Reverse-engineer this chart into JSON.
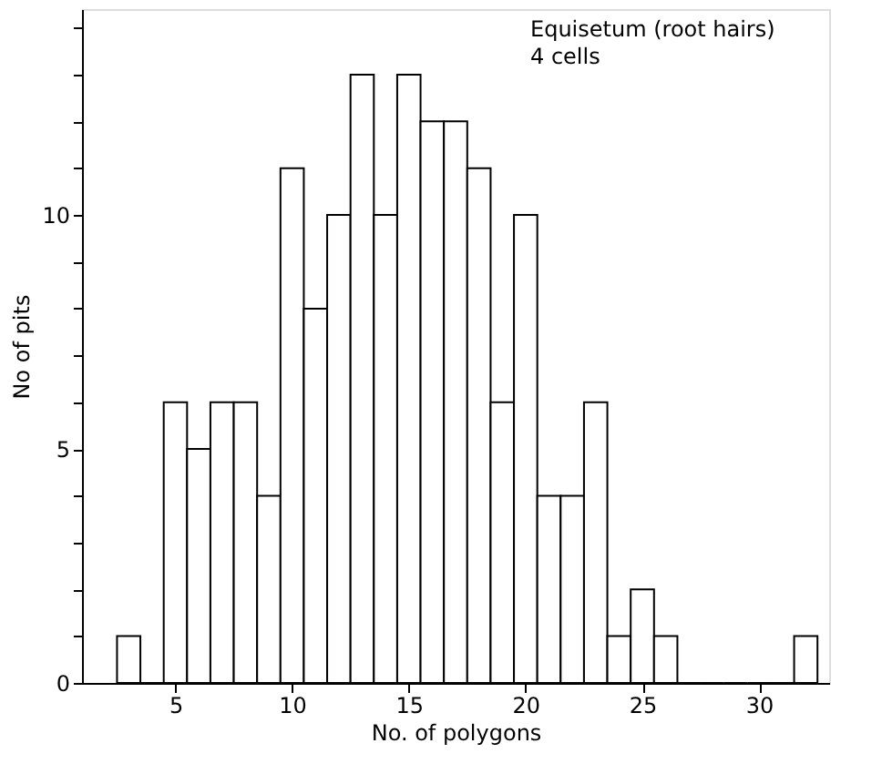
{
  "chart_data": {
    "type": "histogram",
    "xlabel": "No. of polygons",
    "ylabel": "No of pits",
    "bins": [
      2.5,
      3.5,
      4.5,
      5.5,
      6.5,
      7.5,
      8.5,
      9.5,
      10.5,
      11.5,
      12.5,
      13.5,
      14.5,
      15.5,
      16.5,
      17.5,
      18.5,
      19.5,
      20.5,
      21.5,
      22.5,
      23.5,
      24.5,
      25.5,
      26.5,
      27.5,
      28.5,
      29.5,
      30.5,
      31.5,
      32.5
    ],
    "values": [
      1,
      0,
      6,
      5,
      6,
      6,
      4,
      11,
      8,
      10,
      13,
      10,
      13,
      12,
      12,
      11,
      6,
      10,
      4,
      4,
      6,
      1,
      2,
      1,
      0,
      0,
      0,
      0,
      0,
      1
    ],
    "color": "#ffffff",
    "xlim": [
      1,
      33
    ],
    "xticks": [
      5,
      10,
      15,
      20,
      25,
      30
    ],
    "ylim": [
      0,
      14.4
    ],
    "yticks": [
      0,
      {
        "value": 1,
        "label": null
      },
      {
        "value": 2,
        "label": null
      },
      {
        "value": 3,
        "label": null
      },
      {
        "value": 4,
        "label": null
      },
      5,
      {
        "value": 6,
        "label": null
      },
      {
        "value": 7,
        "label": null
      },
      {
        "value": 8,
        "label": null
      },
      {
        "value": 9,
        "label": null
      },
      10,
      {
        "value": 11,
        "label": null
      },
      {
        "value": 12,
        "label": null
      },
      {
        "value": 13,
        "label": null
      },
      {
        "value": 14,
        "label": null
      }
    ],
    "annotations": [
      "Equisetum (root hairs)",
      "4 cells"
    ],
    "grid": false
  }
}
